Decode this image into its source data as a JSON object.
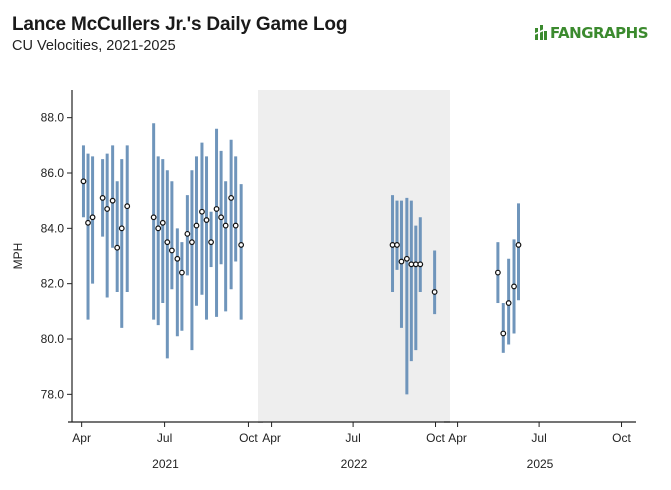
{
  "header": {
    "title": "Lance McCullers Jr.'s Daily Game Log",
    "subtitle": "CU Velocities, 2021-2025"
  },
  "logo": {
    "text": "FANGRAPHS",
    "icon": "fangraphs-logo-icon",
    "color": "#3b8a2e"
  },
  "chart_data": {
    "type": "line",
    "title": "Lance McCullers Jr.'s Daily Game Log",
    "subtitle": "CU Velocities, 2021-2025",
    "ylabel": "MPH",
    "ylim": [
      77,
      89
    ],
    "y_ticks": [
      "78.0",
      "80.0",
      "82.0",
      "84.0",
      "86.0",
      "88.0"
    ],
    "x_ticks": [
      "Apr",
      "Jul",
      "Oct"
    ],
    "grid": false,
    "colors": {
      "range": "#6f95bb",
      "dot": "#111111",
      "shade": "#eeeeee"
    },
    "panels": [
      {
        "year": "2021",
        "shaded": false,
        "games": [
          {
            "date": "2021-04-03",
            "avg": 85.7,
            "min": 84.4,
            "max": 87.0
          },
          {
            "date": "2021-04-08",
            "avg": 84.2,
            "min": 80.7,
            "max": 86.7
          },
          {
            "date": "2021-04-13",
            "avg": 84.4,
            "min": 82.0,
            "max": 86.6
          },
          {
            "date": "2021-04-24",
            "avg": 85.1,
            "min": 83.7,
            "max": 86.5
          },
          {
            "date": "2021-04-29",
            "avg": 84.7,
            "min": 81.5,
            "max": 86.7
          },
          {
            "date": "2021-05-05",
            "avg": 85.0,
            "min": 83.3,
            "max": 87.0
          },
          {
            "date": "2021-05-10",
            "avg": 83.3,
            "min": 81.7,
            "max": 85.7
          },
          {
            "date": "2021-05-15",
            "avg": 84.0,
            "min": 80.4,
            "max": 86.5
          },
          {
            "date": "2021-05-21",
            "avg": 84.8,
            "min": 81.7,
            "max": 87.0
          },
          {
            "date": "2021-06-19",
            "avg": 84.4,
            "min": 80.7,
            "max": 87.8
          },
          {
            "date": "2021-06-24",
            "avg": 84.0,
            "min": 80.5,
            "max": 86.6
          },
          {
            "date": "2021-06-29",
            "avg": 84.2,
            "min": 81.3,
            "max": 86.5
          },
          {
            "date": "2021-07-04",
            "avg": 83.5,
            "min": 79.3,
            "max": 86.1
          },
          {
            "date": "2021-07-09",
            "avg": 83.2,
            "min": 81.8,
            "max": 85.7
          },
          {
            "date": "2021-07-15",
            "avg": 82.9,
            "min": 80.1,
            "max": 84.0
          },
          {
            "date": "2021-07-20",
            "avg": 82.4,
            "min": 80.3,
            "max": 83.5
          },
          {
            "date": "2021-07-26",
            "avg": 83.8,
            "min": 82.3,
            "max": 85.2
          },
          {
            "date": "2021-07-31",
            "avg": 83.5,
            "min": 79.6,
            "max": 86.1
          },
          {
            "date": "2021-08-05",
            "avg": 84.1,
            "min": 81.2,
            "max": 86.6
          },
          {
            "date": "2021-08-11",
            "avg": 84.6,
            "min": 81.6,
            "max": 87.1
          },
          {
            "date": "2021-08-16",
            "avg": 84.3,
            "min": 80.7,
            "max": 86.6
          },
          {
            "date": "2021-08-21",
            "avg": 83.5,
            "min": 82.6,
            "max": 84.6
          },
          {
            "date": "2021-08-27",
            "avg": 84.7,
            "min": 80.8,
            "max": 87.6
          },
          {
            "date": "2021-09-01",
            "avg": 84.4,
            "min": 82.7,
            "max": 86.8
          },
          {
            "date": "2021-09-06",
            "avg": 84.1,
            "min": 81.0,
            "max": 85.7
          },
          {
            "date": "2021-09-12",
            "avg": 85.1,
            "min": 81.8,
            "max": 87.2
          },
          {
            "date": "2021-09-17",
            "avg": 84.1,
            "min": 82.8,
            "max": 86.6
          },
          {
            "date": "2021-09-23",
            "avg": 83.4,
            "min": 80.7,
            "max": 85.6
          }
        ]
      },
      {
        "year": "2022",
        "shaded": true,
        "games": [
          {
            "date": "2022-08-14",
            "avg": 83.4,
            "min": 81.7,
            "max": 85.2
          },
          {
            "date": "2022-08-19",
            "avg": 83.4,
            "min": 82.5,
            "max": 85.0
          },
          {
            "date": "2022-08-24",
            "avg": 82.8,
            "min": 80.4,
            "max": 85.0
          },
          {
            "date": "2022-08-30",
            "avg": 82.9,
            "min": 78.0,
            "max": 85.1
          },
          {
            "date": "2022-09-04",
            "avg": 82.7,
            "min": 79.2,
            "max": 85.0
          },
          {
            "date": "2022-09-09",
            "avg": 82.7,
            "min": 79.6,
            "max": 84.1
          },
          {
            "date": "2022-09-14",
            "avg": 82.7,
            "min": 81.7,
            "max": 84.4
          },
          {
            "date": "2022-09-30",
            "avg": 81.7,
            "min": 80.9,
            "max": 83.2
          }
        ]
      },
      {
        "year": "2025",
        "shaded": false,
        "games": [
          {
            "date": "2025-05-16",
            "avg": 82.4,
            "min": 81.3,
            "max": 83.5
          },
          {
            "date": "2025-05-22",
            "avg": 80.2,
            "min": 79.5,
            "max": 81.3
          },
          {
            "date": "2025-05-28",
            "avg": 81.3,
            "min": 79.8,
            "max": 82.9
          },
          {
            "date": "2025-06-03",
            "avg": 81.9,
            "min": 80.2,
            "max": 83.6
          },
          {
            "date": "2025-06-08",
            "avg": 83.4,
            "min": 81.4,
            "max": 84.9
          }
        ]
      }
    ]
  }
}
